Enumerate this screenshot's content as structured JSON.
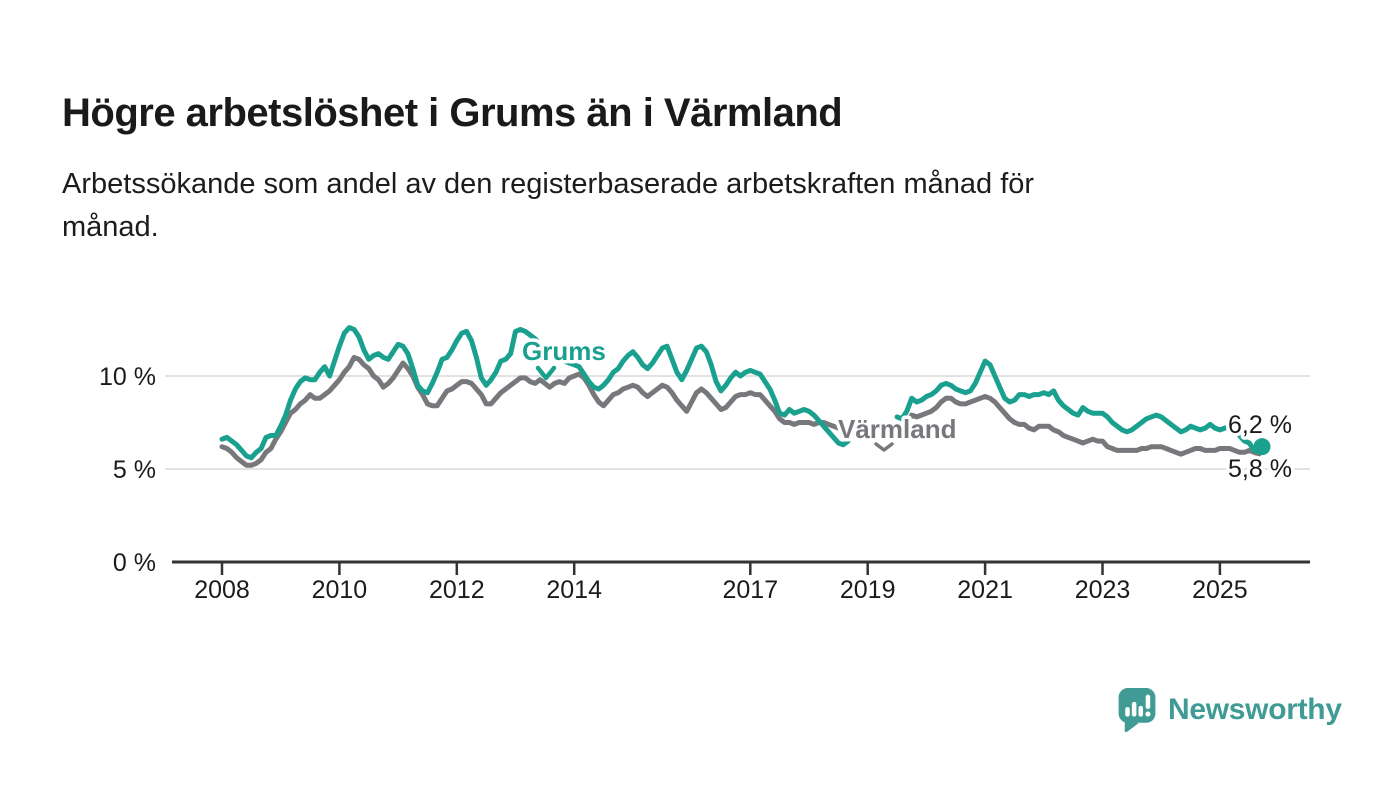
{
  "header": {
    "title": "Högre arbetslöshet i Grums än i Värmland",
    "subtitle_line1": "Arbetssökande som andel av den registerbaserade arbetskraften månad för",
    "subtitle_line2": "månad."
  },
  "chart_data": {
    "type": "line",
    "title": "Högre arbetslöshet i Grums än i Värmland",
    "subtitle": "Arbetssökande som andel av den registerbaserade arbetskraften månad för månad.",
    "unit": "%",
    "x_start_year": 2008,
    "x_frequency": "monthly",
    "data_gap": "okt 2018 – jun 2019",
    "xlim": [
      2007.15,
      2026.55
    ],
    "ylim": [
      0,
      15
    ],
    "grid": "horizontal",
    "legend_position": "inline-annotations",
    "x_ticks": [
      {
        "t": 2008,
        "label": "2008"
      },
      {
        "t": 2010,
        "label": "2010"
      },
      {
        "t": 2012,
        "label": "2012"
      },
      {
        "t": 2014,
        "label": "2014"
      },
      {
        "t": 2017,
        "label": "2017"
      },
      {
        "t": 2019,
        "label": "2019"
      },
      {
        "t": 2021,
        "label": "2021"
      },
      {
        "t": 2023,
        "label": "2023"
      },
      {
        "t": 2025,
        "label": "2025"
      }
    ],
    "y_ticks": [
      {
        "value": 0,
        "label": "0 %"
      },
      {
        "value": 5,
        "label": "5 %"
      },
      {
        "value": 10,
        "label": "10 %"
      }
    ],
    "series": [
      {
        "name": "Grums",
        "label": "Grums",
        "color": "#1aa08f",
        "end_label": "6,2 %",
        "end_value": 6.2,
        "end_dot": true,
        "values": [
          6.6,
          6.7,
          6.5,
          6.3,
          6.0,
          5.7,
          5.6,
          5.9,
          6.1,
          6.7,
          6.8,
          6.8,
          7.3,
          7.9,
          8.7,
          9.3,
          9.7,
          9.9,
          9.8,
          9.8,
          10.2,
          10.5,
          10.0,
          10.8,
          11.6,
          12.3,
          12.6,
          12.5,
          12.1,
          11.4,
          10.9,
          11.1,
          11.2,
          11.0,
          10.9,
          11.3,
          11.7,
          11.6,
          11.2,
          10.4,
          9.5,
          9.2,
          9.1,
          9.6,
          10.2,
          10.9,
          11.0,
          11.4,
          11.9,
          12.3,
          12.4,
          11.9,
          11.0,
          9.9,
          9.5,
          9.8,
          10.2,
          10.8,
          10.9,
          11.2,
          12.4,
          12.5,
          12.4,
          12.2,
          12.0,
          11.7,
          11.4,
          11.2,
          11.0,
          10.9,
          10.8,
          10.7,
          10.6,
          10.5,
          10.1,
          9.7,
          9.4,
          9.3,
          9.5,
          9.8,
          10.2,
          10.4,
          10.8,
          11.1,
          11.3,
          11.0,
          10.6,
          10.4,
          10.7,
          11.1,
          11.5,
          11.6,
          10.9,
          10.2,
          9.8,
          10.3,
          10.9,
          11.5,
          11.6,
          11.3,
          10.6,
          9.7,
          9.2,
          9.5,
          9.9,
          10.2,
          10.0,
          10.2,
          10.3,
          10.2,
          10.1,
          9.7,
          9.3,
          8.7,
          8.0,
          7.9,
          8.2,
          8.0,
          8.1,
          8.2,
          8.1,
          7.9,
          7.6,
          7.3,
          7.0,
          6.7,
          6.4,
          6.3,
          6.5,
          null,
          null,
          null,
          null,
          null,
          null,
          null,
          null,
          null,
          7.8,
          7.7,
          8.1,
          8.8,
          8.6,
          8.7,
          8.9,
          9.0,
          9.2,
          9.5,
          9.6,
          9.5,
          9.3,
          9.2,
          9.1,
          9.2,
          9.6,
          10.2,
          10.8,
          10.6,
          10.0,
          9.4,
          8.8,
          8.6,
          8.7,
          9.0,
          9.0,
          8.9,
          9.0,
          9.0,
          9.1,
          9.0,
          9.2,
          8.7,
          8.4,
          8.2,
          8.0,
          7.9,
          8.3,
          8.1,
          8.0,
          8.0,
          8.0,
          7.8,
          7.5,
          7.3,
          7.1,
          7.0,
          7.1,
          7.3,
          7.5,
          7.7,
          7.8,
          7.9,
          7.8,
          7.6,
          7.4,
          7.2,
          7.0,
          7.1,
          7.3,
          7.2,
          7.1,
          7.2,
          7.4,
          7.2,
          7.1,
          7.2,
          7.3,
          7.1,
          6.8,
          6.5,
          6.4,
          6.0,
          6.2
        ]
      },
      {
        "name": "Värmland",
        "label": "Värmland",
        "color": "#77787b",
        "end_label": "5,8 %",
        "end_value": 5.8,
        "end_dot": false,
        "values": [
          6.2,
          6.1,
          5.9,
          5.6,
          5.4,
          5.2,
          5.2,
          5.3,
          5.5,
          5.9,
          6.1,
          6.6,
          7.0,
          7.5,
          8.0,
          8.2,
          8.5,
          8.7,
          9.0,
          8.8,
          8.8,
          9.0,
          9.2,
          9.5,
          9.8,
          10.2,
          10.5,
          11.0,
          10.9,
          10.6,
          10.4,
          10.0,
          9.8,
          9.4,
          9.6,
          9.9,
          10.3,
          10.7,
          10.4,
          10.0,
          9.4,
          9.0,
          8.5,
          8.4,
          8.4,
          8.8,
          9.2,
          9.3,
          9.5,
          9.7,
          9.7,
          9.6,
          9.3,
          9.0,
          8.5,
          8.5,
          8.8,
          9.1,
          9.3,
          9.5,
          9.7,
          9.9,
          9.9,
          9.7,
          9.6,
          9.8,
          9.6,
          9.4,
          9.6,
          9.7,
          9.6,
          9.9,
          10.0,
          10.1,
          9.9,
          9.5,
          9.0,
          8.6,
          8.4,
          8.7,
          9.0,
          9.1,
          9.3,
          9.4,
          9.5,
          9.4,
          9.1,
          8.9,
          9.1,
          9.3,
          9.5,
          9.4,
          9.1,
          8.7,
          8.4,
          8.1,
          8.6,
          9.1,
          9.3,
          9.1,
          8.8,
          8.5,
          8.2,
          8.3,
          8.6,
          8.9,
          9.0,
          9.0,
          9.1,
          9.0,
          9.0,
          8.7,
          8.4,
          8.1,
          7.7,
          7.5,
          7.5,
          7.4,
          7.5,
          7.5,
          7.5,
          7.4,
          7.5,
          7.5,
          7.4,
          7.3,
          7.2,
          7.1,
          7.0,
          null,
          null,
          null,
          null,
          null,
          null,
          null,
          null,
          null,
          7.3,
          7.2,
          7.5,
          7.9,
          7.8,
          7.9,
          8.0,
          8.1,
          8.3,
          8.6,
          8.8,
          8.8,
          8.6,
          8.5,
          8.5,
          8.6,
          8.7,
          8.8,
          8.9,
          8.8,
          8.6,
          8.3,
          8.0,
          7.7,
          7.5,
          7.4,
          7.4,
          7.2,
          7.1,
          7.3,
          7.3,
          7.3,
          7.1,
          7.0,
          6.8,
          6.7,
          6.6,
          6.5,
          6.4,
          6.5,
          6.6,
          6.5,
          6.5,
          6.2,
          6.1,
          6.0,
          6.0,
          6.0,
          6.0,
          6.0,
          6.1,
          6.1,
          6.2,
          6.2,
          6.2,
          6.1,
          6.0,
          5.9,
          5.8,
          5.9,
          6.0,
          6.1,
          6.1,
          6.0,
          6.0,
          6.0,
          6.1,
          6.1,
          6.1,
          6.0,
          5.9,
          5.9,
          6.0,
          5.9,
          5.8
        ]
      }
    ],
    "colors": {
      "grid": "#d9d9d9",
      "axis": "#333333",
      "text": "#1b1b1b"
    }
  },
  "footer": {
    "brand": "Newsworthy",
    "brand_color": "#3f9b94"
  }
}
